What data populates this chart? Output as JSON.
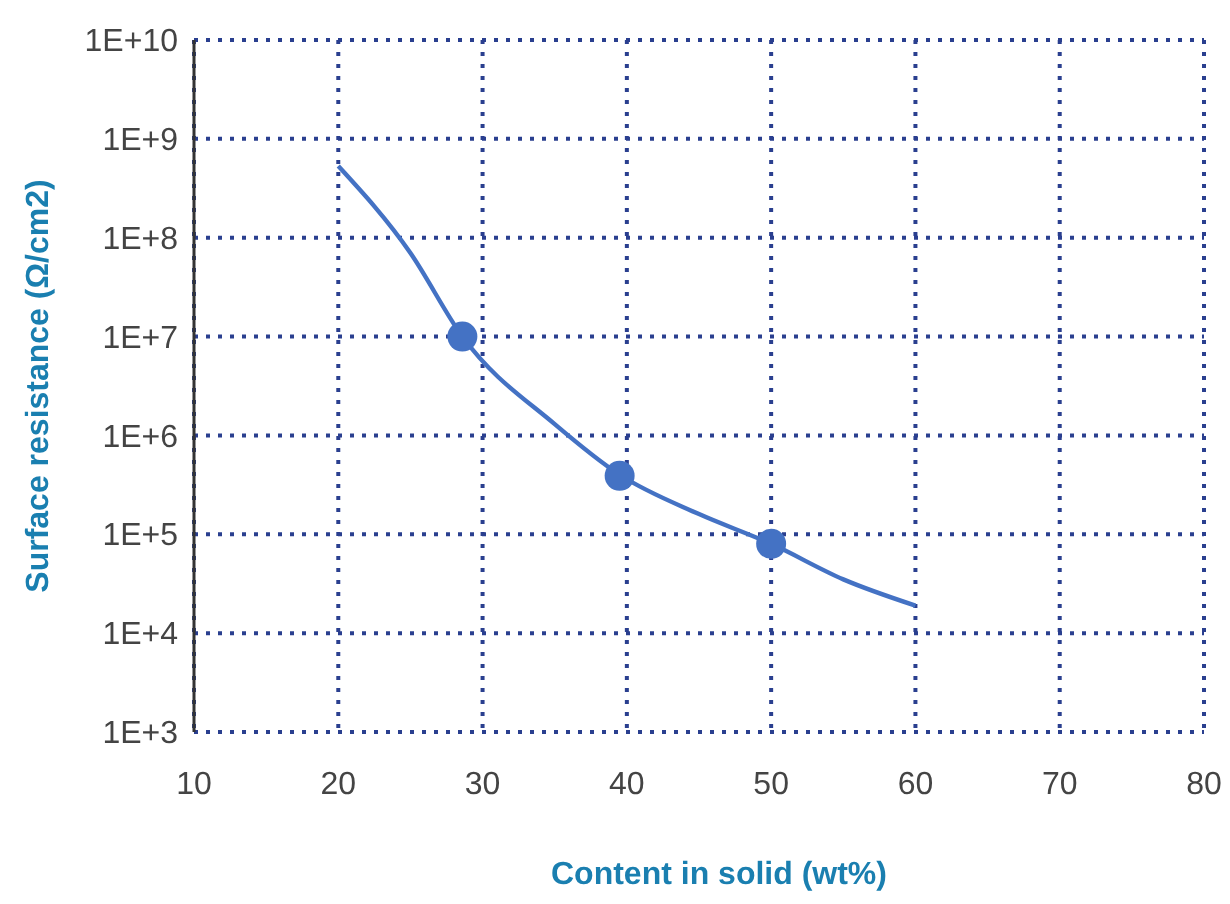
{
  "chart_data": {
    "type": "line",
    "xlabel": "Content in solid (wt%)",
    "ylabel": "Surface resistance (Ω/cm2)",
    "log": "y",
    "grid": true,
    "xlim": [
      10,
      80
    ],
    "xticks": [
      10,
      20,
      30,
      40,
      50,
      60,
      70,
      80
    ],
    "ylim": [
      1000,
      10000000000
    ],
    "yticks": [
      {
        "value": 1000,
        "label": "1E+3"
      },
      {
        "value": 10000,
        "label": "1E+4"
      },
      {
        "value": 100000,
        "label": "1E+5"
      },
      {
        "value": 1000000,
        "label": "1E+6"
      },
      {
        "value": 10000000,
        "label": "1E+7"
      },
      {
        "value": 100000000,
        "label": "1E+8"
      },
      {
        "value": 1000000000,
        "label": "1E+9"
      },
      {
        "value": 10000000000,
        "label": "1E+10"
      }
    ],
    "series": [
      {
        "color": "#4472c4",
        "x": [
          20,
          25,
          28.6,
          35,
          39.5,
          45,
          50,
          55,
          60
        ],
        "values": [
          530000000,
          70000000,
          10000000,
          1300000,
          400000,
          160000,
          80000,
          35000,
          19000
        ]
      },
      {
        "type": "scatter",
        "marker": "circle",
        "color": "#4472c4",
        "x": [
          28.6,
          39.5,
          50
        ],
        "values": [
          10000000,
          390000,
          80000
        ]
      }
    ]
  }
}
